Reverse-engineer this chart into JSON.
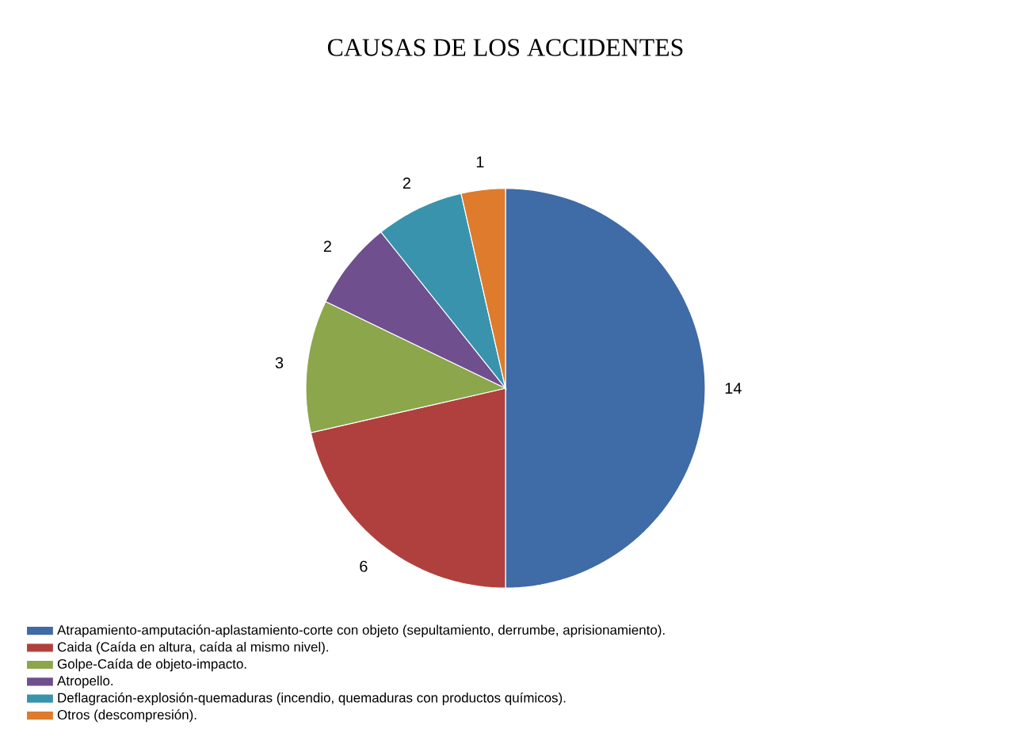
{
  "chart_data": {
    "type": "pie",
    "title": "CAUSAS DE LOS ACCIDENTES",
    "categories": [
      "Atrapamiento-amputación-aplastamiento-corte con objeto (sepultamiento, derrumbe, aprisionamiento).",
      "Caida (Caída en altura, caída al mismo nivel).",
      "Golpe-Caída de objeto-impacto.",
      "Atropello.",
      "Deflagración-explosión-quemaduras (incendio, quemaduras con productos químicos).",
      "Otros (descompresión)."
    ],
    "values": [
      14,
      6,
      3,
      2,
      2,
      1
    ],
    "colors": [
      "#3f6ba6",
      "#b0403d",
      "#8ba64b",
      "#6f4f8d",
      "#3993ad",
      "#de7b2c"
    ],
    "data_labels": true,
    "legend": "bottom"
  }
}
